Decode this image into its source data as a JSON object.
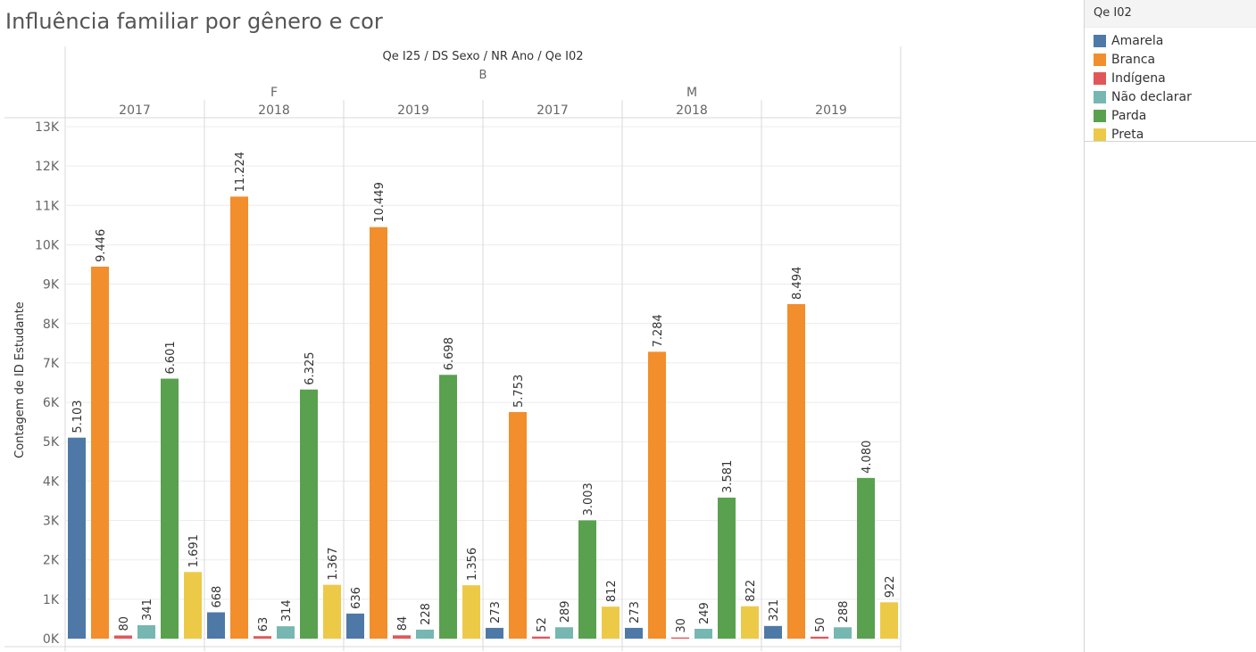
{
  "title": "Influência familiar por gênero e cor",
  "header": {
    "fields": "Qe I25  /  DS Sexo  /  NR Ano  /  Qe I02",
    "level1": "B",
    "sexes": [
      "F",
      "M"
    ],
    "years": [
      "2017",
      "2018",
      "2019",
      "2017",
      "2018",
      "2019"
    ]
  },
  "legend": {
    "title": "Qe I02",
    "items": [
      {
        "label": "Amarela",
        "color": "#4e79a7"
      },
      {
        "label": "Branca",
        "color": "#f28e2b"
      },
      {
        "label": "Indígena",
        "color": "#e15759"
      },
      {
        "label": "Não declarar",
        "color": "#76b7b2"
      },
      {
        "label": "Parda",
        "color": "#59a14f"
      },
      {
        "label": "Preta",
        "color": "#edc948"
      }
    ]
  },
  "chart_data": {
    "type": "bar",
    "title": "Influência familiar por gênero e cor",
    "ylabel": "Contagem de ID Estudante",
    "ylim": [
      0,
      13000
    ],
    "yticks": [
      "0K",
      "1K",
      "2K",
      "3K",
      "4K",
      "5K",
      "6K",
      "7K",
      "8K",
      "9K",
      "10K",
      "11K",
      "12K",
      "13K"
    ],
    "grid": true,
    "legend_position": "right",
    "groups": [
      {
        "sex": "F",
        "year": "2017",
        "values": [
          5103,
          9446,
          80,
          341,
          6601,
          1691
        ],
        "labels": [
          "5.103",
          "9.446",
          "80",
          "341",
          "6.601",
          "1.691"
        ]
      },
      {
        "sex": "F",
        "year": "2018",
        "values": [
          668,
          11224,
          63,
          314,
          6325,
          1367
        ],
        "labels": [
          "668",
          "11.224",
          "63",
          "314",
          "6.325",
          "1.367"
        ]
      },
      {
        "sex": "F",
        "year": "2019",
        "values": [
          636,
          10449,
          84,
          228,
          6698,
          1356
        ],
        "labels": [
          "636",
          "10.449",
          "84",
          "228",
          "6.698",
          "1.356"
        ]
      },
      {
        "sex": "M",
        "year": "2017",
        "values": [
          273,
          5753,
          52,
          289,
          3003,
          812
        ],
        "labels": [
          "273",
          "5.753",
          "52",
          "289",
          "3.003",
          "812"
        ]
      },
      {
        "sex": "M",
        "year": "2018",
        "values": [
          273,
          7284,
          30,
          249,
          3581,
          822
        ],
        "labels": [
          "273",
          "7.284",
          "30",
          "249",
          "3.581",
          "822"
        ]
      },
      {
        "sex": "M",
        "year": "2019",
        "values": [
          321,
          8494,
          50,
          288,
          4080,
          922
        ],
        "labels": [
          "321",
          "8.494",
          "50",
          "288",
          "4.080",
          "922"
        ]
      }
    ]
  }
}
